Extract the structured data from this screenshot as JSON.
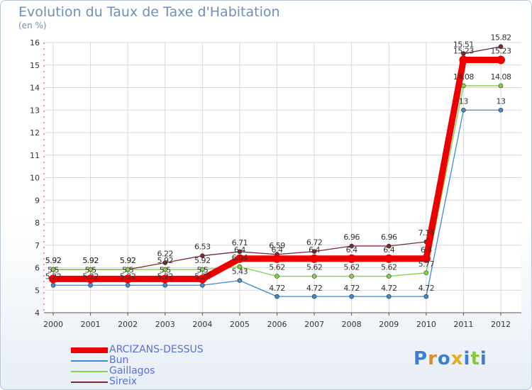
{
  "chart_data": {
    "type": "line",
    "title": "Evolution du Taux de Taxe d'Habitation",
    "subtitle": "(en %)",
    "x": [
      "2000",
      "2001",
      "2002",
      "2003",
      "2004",
      "2005",
      "2006",
      "2007",
      "2008",
      "2009",
      "2010",
      "2011",
      "2012"
    ],
    "ylim": [
      4,
      16
    ],
    "yticks": [
      4,
      5,
      6,
      7,
      8,
      9,
      10,
      11,
      12,
      13,
      14,
      15,
      16
    ],
    "series": [
      {
        "name": "Sireix",
        "color": "#7a2a30",
        "values": [
          5.92,
          5.92,
          5.92,
          6.22,
          6.53,
          6.71,
          6.59,
          6.72,
          6.96,
          6.96,
          7.15,
          15.51,
          15.82
        ],
        "labels": [
          "5.92",
          "5.92",
          "5.92",
          "6.22",
          "6.53",
          "6.71",
          "6.59",
          "6.72",
          "6.96",
          "6.96",
          "7.15",
          "15.51",
          "15.82"
        ]
      },
      {
        "name": "Gaillagos",
        "color": "#7fd44a",
        "values": [
          5.92,
          5.92,
          5.92,
          5.92,
          5.92,
          6.04,
          5.62,
          5.62,
          5.62,
          5.62,
          5.77,
          14.08,
          14.08
        ],
        "labels": [
          "5.92",
          "5.92",
          "5.92",
          "5.92",
          "5.92",
          "6.04",
          "5.62",
          "5.62",
          "5.62",
          "5.62",
          "5.77",
          "14.08",
          "14.08"
        ]
      },
      {
        "name": "Bun",
        "color": "#3f8ad0",
        "values": [
          5.22,
          5.22,
          5.22,
          5.22,
          5.22,
          5.43,
          4.72,
          4.72,
          4.72,
          4.72,
          4.72,
          13,
          13
        ],
        "labels": [
          "5.22",
          "5.22",
          "5.22",
          "5.22",
          "5.22",
          "5.43",
          "4.72",
          "4.72",
          "4.72",
          "4.72",
          "4.72",
          "13",
          "13"
        ]
      },
      {
        "name": "ARCIZANS-DESSUS",
        "color": "#ee0000",
        "values": [
          5.5,
          5.5,
          5.5,
          5.5,
          5.5,
          6.4,
          6.4,
          6.4,
          6.4,
          6.4,
          6.4,
          15.23,
          15.23
        ],
        "labels": [
          "5.5",
          "5.5",
          "5.5",
          "5.5",
          "5.5",
          "6.4",
          "6.4",
          "6.4",
          "6.4",
          "6.4",
          "6.4",
          "15.23",
          "15.23"
        ]
      }
    ],
    "legend_order": [
      "ARCIZANS-DESSUS",
      "Bun",
      "Gaillagos",
      "Sireix"
    ]
  },
  "logo": {
    "text": "Proxiti"
  }
}
